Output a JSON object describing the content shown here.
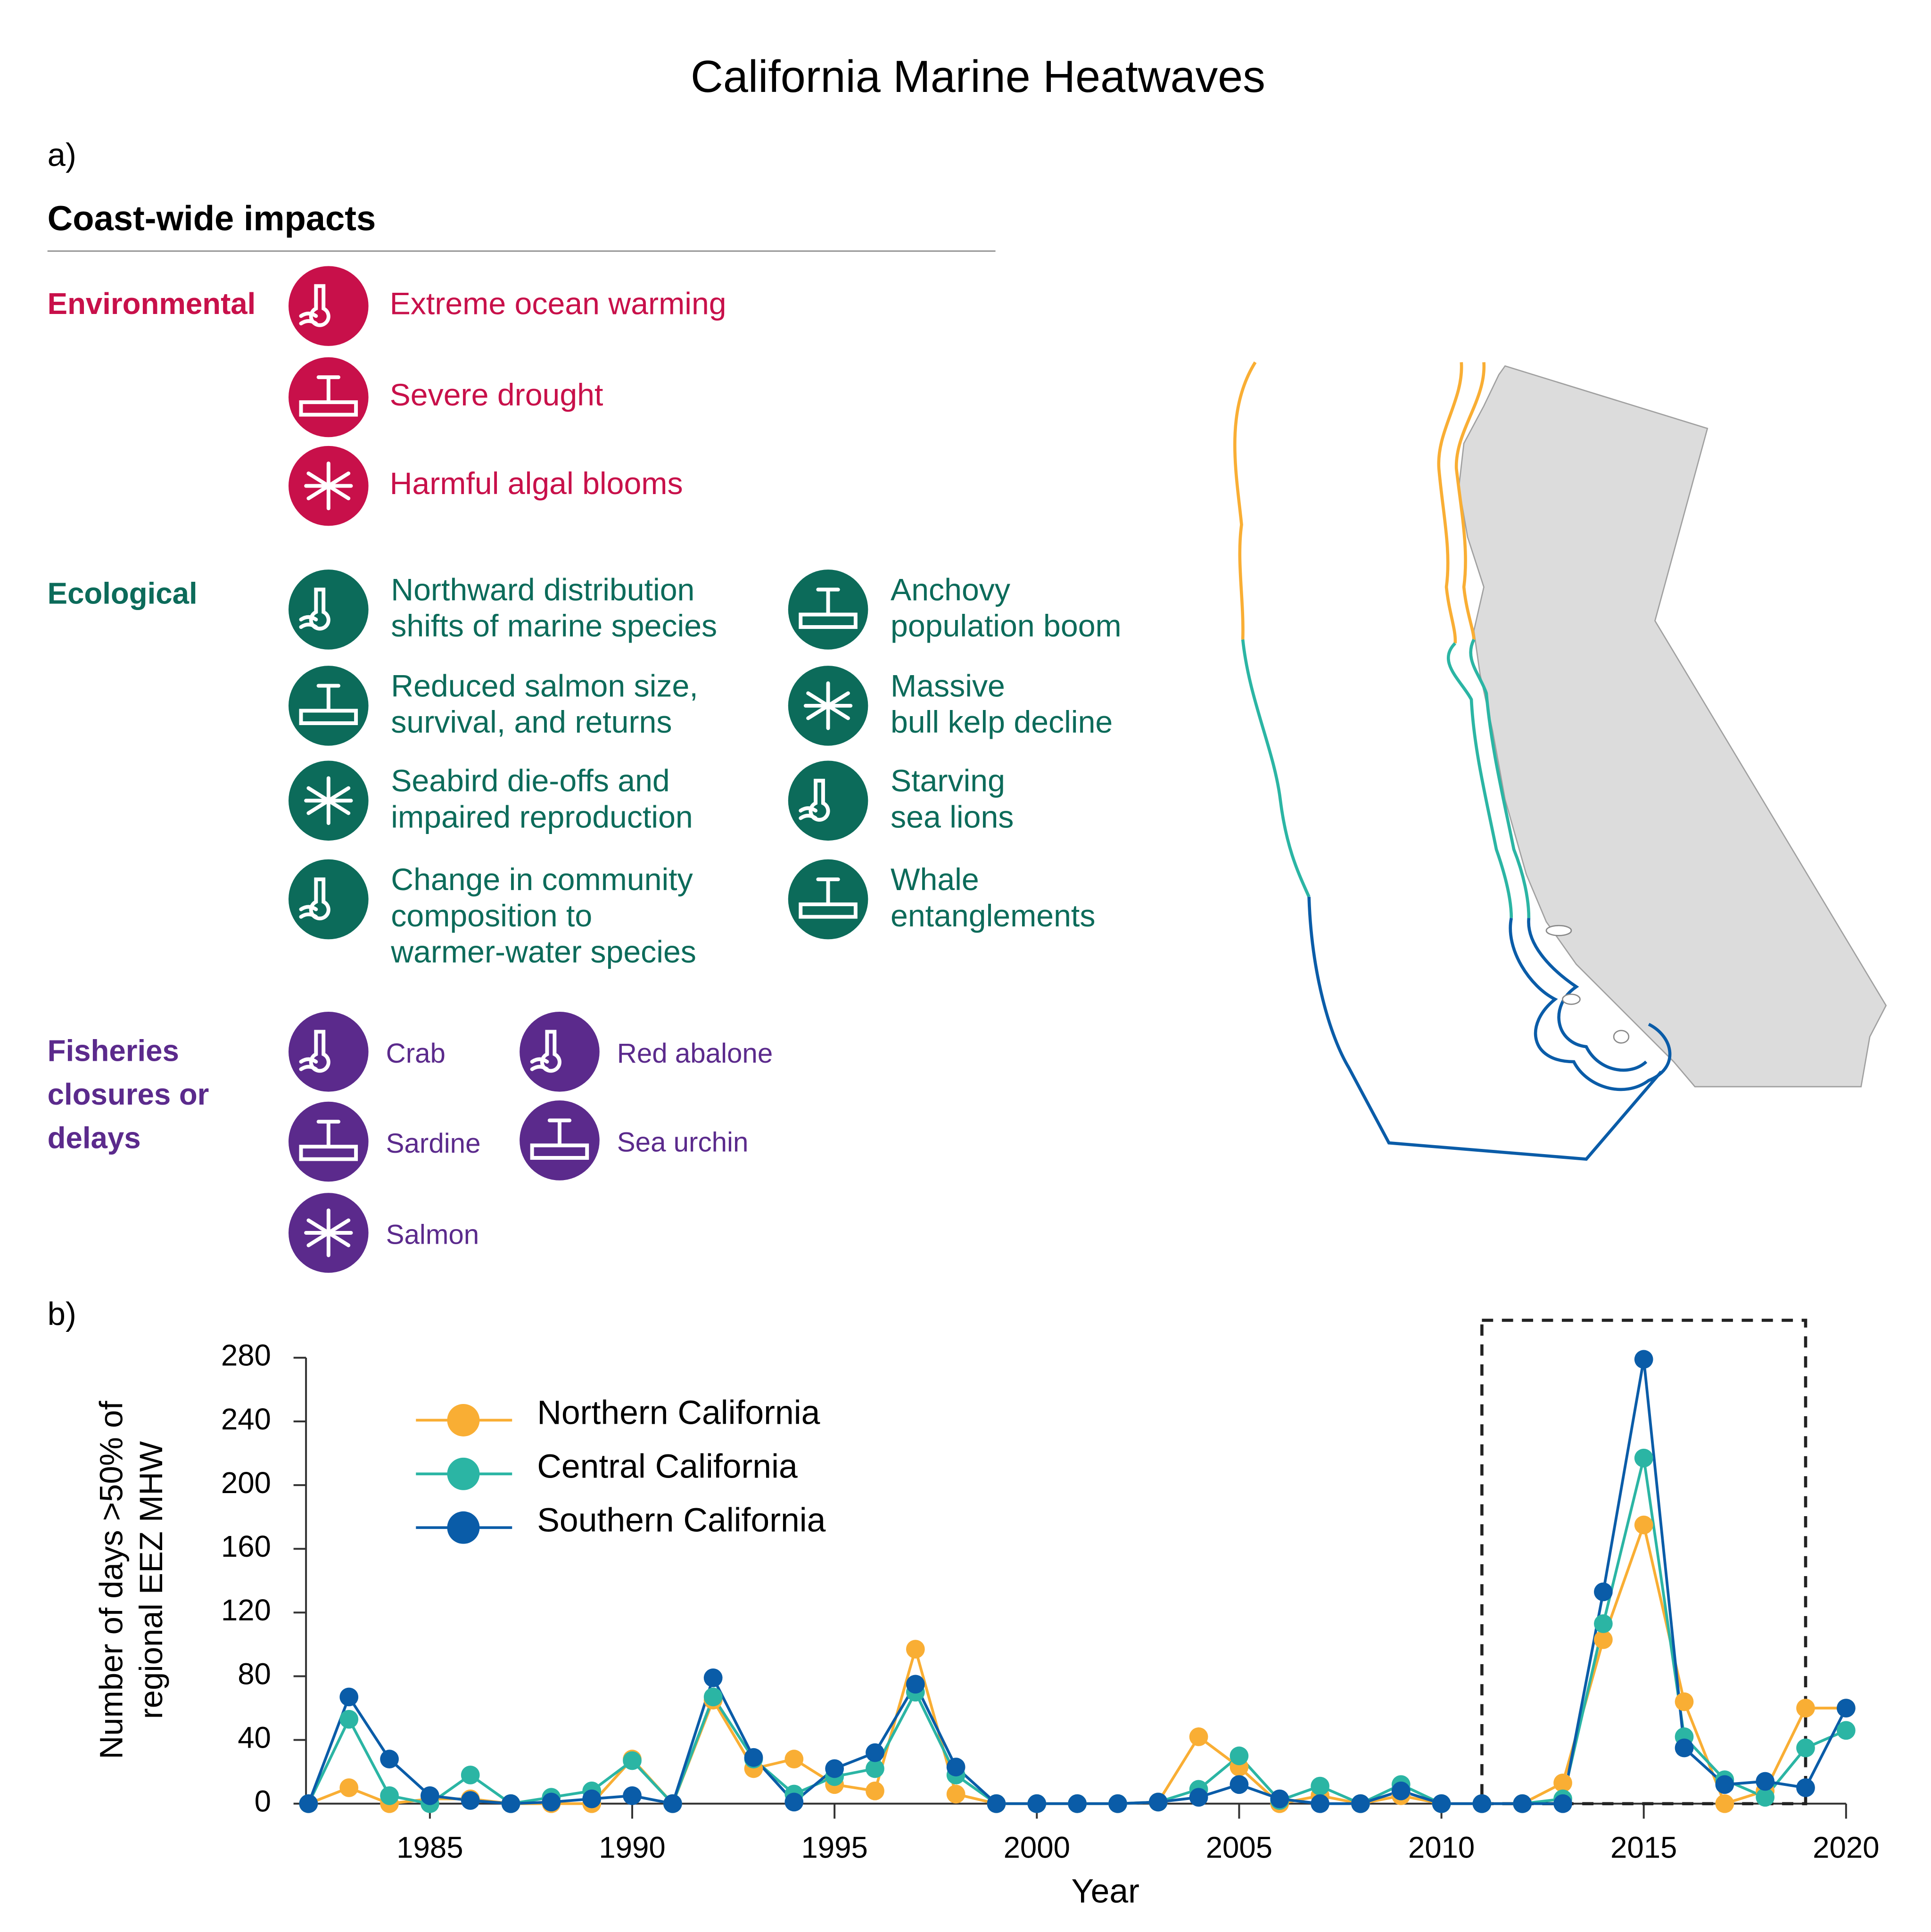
{
  "title": "California Marine Heatwaves",
  "panel_a": {
    "label": "a)",
    "heading": "Coast-wide impacts",
    "groups": [
      {
        "name": [
          "Environmental"
        ],
        "color": "#c8104a",
        "items": [
          [
            "Extreme ocean warming"
          ],
          [
            "Severe drought"
          ],
          [
            "Harmful algal blooms"
          ]
        ]
      },
      {
        "name": [
          "Ecological"
        ],
        "color": "#0c6b5a",
        "items": [
          [
            "Northward distribution",
            "shifts of marine species"
          ],
          [
            "Reduced salmon size,",
            "survival, and returns"
          ],
          [
            "Seabird die-offs and",
            "impaired reproduction"
          ],
          [
            "Change in community",
            "composition to",
            "warmer-water species"
          ],
          [
            "Anchovy",
            "population boom"
          ],
          [
            "Massive",
            "bull kelp decline"
          ],
          [
            "Starving",
            "sea lions"
          ],
          [
            "Whale",
            "entanglements"
          ]
        ]
      },
      {
        "name": [
          "Fisheries",
          "closures or",
          "delays"
        ],
        "color": "#5b2a8c",
        "items": [
          [
            "Crab"
          ],
          [
            "Sardine"
          ],
          [
            "Salmon"
          ],
          [
            "Red abalone"
          ],
          [
            "Sea urchin"
          ]
        ]
      }
    ]
  },
  "chart_data": {
    "type": "line",
    "panel_label": "b)",
    "x_label": "Year",
    "y_label": [
      "Number of days >50% of",
      "regional EEZ MHW"
    ],
    "x": [
      1982,
      1983,
      1984,
      1985,
      1986,
      1987,
      1988,
      1989,
      1990,
      1991,
      1992,
      1993,
      1994,
      1995,
      1996,
      1997,
      1998,
      1999,
      2000,
      2001,
      2002,
      2003,
      2004,
      2005,
      2006,
      2007,
      2008,
      2009,
      2010,
      2011,
      2012,
      2013,
      2014,
      2015,
      2016,
      2017,
      2018,
      2019,
      2020
    ],
    "series": [
      {
        "name": "Northern California",
        "color": "#f9ae34",
        "values": [
          0,
          10,
          0,
          3,
          3,
          0,
          0,
          0,
          28,
          0,
          65,
          22,
          28,
          12,
          8,
          97,
          6,
          0,
          0,
          0,
          0,
          1,
          42,
          23,
          0,
          5,
          0,
          5,
          0,
          0,
          0,
          13,
          103,
          175,
          64,
          0,
          8,
          60,
          60
        ]
      },
      {
        "name": "Central California",
        "color": "#2bb5a4",
        "values": [
          0,
          53,
          5,
          0,
          18,
          0,
          4,
          8,
          27,
          0,
          67,
          28,
          6,
          17,
          22,
          70,
          18,
          0,
          0,
          0,
          0,
          1,
          9,
          30,
          2,
          11,
          0,
          12,
          0,
          0,
          0,
          3,
          113,
          217,
          42,
          15,
          4,
          35,
          46
        ]
      },
      {
        "name": "Southern California",
        "color": "#0a5ca8",
        "values": [
          0,
          67,
          28,
          5,
          2,
          0,
          1,
          3,
          5,
          0,
          79,
          29,
          1,
          22,
          32,
          75,
          23,
          0,
          0,
          0,
          0,
          1,
          4,
          12,
          3,
          0,
          0,
          8,
          0,
          0,
          0,
          0,
          133,
          279,
          35,
          12,
          14,
          10,
          60
        ]
      }
    ],
    "xlim": [
      1982,
      2020
    ],
    "xticks": [
      1985,
      1990,
      1995,
      2000,
      2005,
      2010,
      2015,
      2020
    ],
    "ylim": [
      0,
      280
    ],
    "yticks": [
      0,
      40,
      80,
      120,
      160,
      200,
      240,
      280
    ],
    "highlight_x": [
      2011,
      2019
    ],
    "legend": "upper left"
  }
}
